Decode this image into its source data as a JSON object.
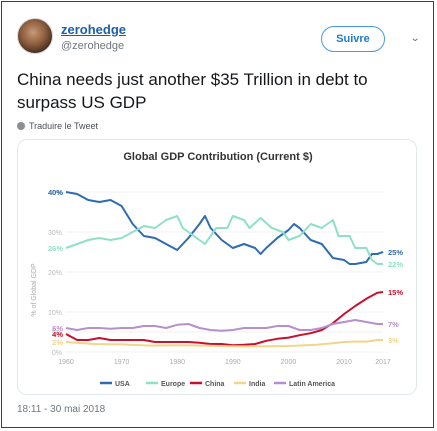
{
  "account": {
    "display_name": "zerohedge",
    "handle": "@zerohedge",
    "follow_label": "Suivre",
    "avatar_icon": "avatar-photo",
    "menu_icon": "chevron-down-icon"
  },
  "tweet": {
    "text": "China needs just another $35 Trillion in debt to surpass US GDP",
    "translate_label": "Traduire le Tweet",
    "timestamp": "18:11 - 30 mai 2018"
  },
  "colors": {
    "link": "#1c5fa8",
    "usa": "#2e6bb0",
    "europe": "#8ee0c6",
    "china": "#c8102e",
    "india": "#f2d58a",
    "latin_america": "#b78fd0"
  },
  "chart_data": {
    "type": "line",
    "title": "Global GDP Contribution (Current $)",
    "ylabel": "% of Global GDP",
    "xlabel": "",
    "xlim": [
      1960,
      2017
    ],
    "ylim": [
      0,
      42
    ],
    "x_ticks": [
      "1960",
      "1970",
      "1980",
      "1990",
      "2000",
      "2010",
      "2017"
    ],
    "y_ticks": [
      "0%",
      "5%",
      "10%",
      "20%",
      "30%",
      "40%"
    ],
    "grid": true,
    "legend_position": "bottom",
    "series": [
      {
        "name": "USA",
        "color": "#2e6bb0",
        "start_label": "40%",
        "end_label": "25%",
        "points": [
          [
            1960,
            40
          ],
          [
            1962,
            39.5
          ],
          [
            1964,
            38
          ],
          [
            1966,
            37.5
          ],
          [
            1968,
            38
          ],
          [
            1970,
            36.5
          ],
          [
            1972,
            32
          ],
          [
            1974,
            29
          ],
          [
            1976,
            28.5
          ],
          [
            1978,
            27
          ],
          [
            1980,
            25.5
          ],
          [
            1982,
            28.5
          ],
          [
            1984,
            32
          ],
          [
            1985,
            34
          ],
          [
            1986,
            31
          ],
          [
            1988,
            28
          ],
          [
            1990,
            26
          ],
          [
            1992,
            27
          ],
          [
            1994,
            26
          ],
          [
            1995,
            24.5
          ],
          [
            1996,
            26
          ],
          [
            1998,
            28.5
          ],
          [
            2000,
            30.5
          ],
          [
            2001,
            32
          ],
          [
            2002,
            31
          ],
          [
            2004,
            28
          ],
          [
            2006,
            27
          ],
          [
            2008,
            23.5
          ],
          [
            2010,
            23
          ],
          [
            2011,
            22
          ],
          [
            2012,
            22
          ],
          [
            2014,
            22.5
          ],
          [
            2015,
            24.5
          ],
          [
            2016,
            24.5
          ],
          [
            2017,
            25
          ]
        ]
      },
      {
        "name": "Europe",
        "color": "#8ee0c6",
        "start_label": "26%",
        "end_label": "22%",
        "points": [
          [
            1960,
            26
          ],
          [
            1962,
            27
          ],
          [
            1964,
            28
          ],
          [
            1966,
            28.5
          ],
          [
            1968,
            28
          ],
          [
            1970,
            28.5
          ],
          [
            1972,
            30
          ],
          [
            1974,
            31.5
          ],
          [
            1976,
            31
          ],
          [
            1978,
            33
          ],
          [
            1980,
            34
          ],
          [
            1981,
            31
          ],
          [
            1983,
            29
          ],
          [
            1985,
            27
          ],
          [
            1987,
            31
          ],
          [
            1989,
            31
          ],
          [
            1990,
            34
          ],
          [
            1992,
            33
          ],
          [
            1993,
            31
          ],
          [
            1995,
            33.5
          ],
          [
            1997,
            31
          ],
          [
            1999,
            30
          ],
          [
            2000,
            28
          ],
          [
            2002,
            29
          ],
          [
            2004,
            32
          ],
          [
            2006,
            31
          ],
          [
            2008,
            33
          ],
          [
            2009,
            29
          ],
          [
            2011,
            29
          ],
          [
            2012,
            26
          ],
          [
            2014,
            26
          ],
          [
            2015,
            23
          ],
          [
            2016,
            22
          ],
          [
            2017,
            22
          ]
        ]
      },
      {
        "name": "China",
        "color": "#c8102e",
        "start_label": "4%",
        "end_label": "15%",
        "points": [
          [
            1960,
            4.5
          ],
          [
            1962,
            3
          ],
          [
            1964,
            3
          ],
          [
            1966,
            3.5
          ],
          [
            1968,
            3
          ],
          [
            1970,
            3
          ],
          [
            1972,
            3
          ],
          [
            1974,
            3
          ],
          [
            1976,
            2.5
          ],
          [
            1978,
            2.5
          ],
          [
            1980,
            2.5
          ],
          [
            1982,
            2.5
          ],
          [
            1984,
            2.3
          ],
          [
            1986,
            2
          ],
          [
            1988,
            2
          ],
          [
            1990,
            1.7
          ],
          [
            1992,
            1.8
          ],
          [
            1994,
            2
          ],
          [
            1996,
            2.8
          ],
          [
            1998,
            3.3
          ],
          [
            2000,
            3.6
          ],
          [
            2002,
            4.2
          ],
          [
            2004,
            4.7
          ],
          [
            2006,
            5.5
          ],
          [
            2008,
            7.2
          ],
          [
            2010,
            9.5
          ],
          [
            2012,
            11.5
          ],
          [
            2014,
            13.3
          ],
          [
            2016,
            14.8
          ],
          [
            2017,
            15
          ]
        ]
      },
      {
        "name": "India",
        "color": "#f2d58a",
        "start_label": "2%",
        "end_label": "3%",
        "points": [
          [
            1960,
            2.5
          ],
          [
            1965,
            2
          ],
          [
            1970,
            1.9
          ],
          [
            1975,
            1.6
          ],
          [
            1980,
            1.7
          ],
          [
            1985,
            1.6
          ],
          [
            1990,
            1.4
          ],
          [
            1995,
            1.4
          ],
          [
            2000,
            1.5
          ],
          [
            2005,
            1.8
          ],
          [
            2008,
            2.2
          ],
          [
            2010,
            2.5
          ],
          [
            2012,
            2.6
          ],
          [
            2014,
            2.6
          ],
          [
            2016,
            3
          ],
          [
            2017,
            3
          ]
        ]
      },
      {
        "name": "Latin America",
        "color": "#b78fd0",
        "start_label": "6%",
        "end_label": "7%",
        "points": [
          [
            1960,
            6
          ],
          [
            1962,
            5.5
          ],
          [
            1964,
            6
          ],
          [
            1966,
            6
          ],
          [
            1968,
            5.8
          ],
          [
            1970,
            6
          ],
          [
            1972,
            6
          ],
          [
            1974,
            6.5
          ],
          [
            1976,
            6.5
          ],
          [
            1978,
            6
          ],
          [
            1980,
            6.8
          ],
          [
            1982,
            7
          ],
          [
            1984,
            6
          ],
          [
            1986,
            5.5
          ],
          [
            1988,
            5.3
          ],
          [
            1990,
            5.5
          ],
          [
            1992,
            6
          ],
          [
            1994,
            6
          ],
          [
            1996,
            6
          ],
          [
            1998,
            6.5
          ],
          [
            2000,
            6.5
          ],
          [
            2002,
            5.5
          ],
          [
            2004,
            5.5
          ],
          [
            2006,
            6
          ],
          [
            2008,
            7
          ],
          [
            2010,
            7.5
          ],
          [
            2012,
            8
          ],
          [
            2014,
            7.5
          ],
          [
            2016,
            7
          ],
          [
            2017,
            7
          ]
        ]
      }
    ]
  }
}
